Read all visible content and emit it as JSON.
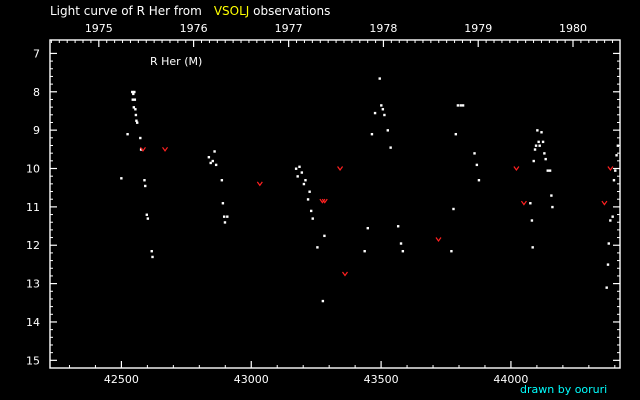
{
  "chart_data": {
    "type": "scatter",
    "title_prefix": "Light curve of R Her from",
    "title_source": "VSOLJ",
    "title_suffix": "observations",
    "series_label": "R Her (M)",
    "credit": "drawn by ooruri",
    "xlim": [
      42225,
      44420
    ],
    "ylim": [
      15.2,
      6.65
    ],
    "x_ticks": [
      42500,
      43000,
      43500,
      44000
    ],
    "y_ticks": [
      7,
      8,
      9,
      10,
      11,
      12,
      13,
      14,
      15
    ],
    "year_ticks": [
      {
        "year": "1975",
        "jd": 42413
      },
      {
        "year": "1976",
        "jd": 42778
      },
      {
        "year": "1977",
        "jd": 43144
      },
      {
        "year": "1978",
        "jd": 43509
      },
      {
        "year": "1979",
        "jd": 43874
      },
      {
        "year": "1980",
        "jd": 44239
      }
    ],
    "colors": {
      "observation": "#ffffff",
      "fainter_than": "#ff2020",
      "source": "#ffff00",
      "credit": "#00ffff"
    },
    "observations": [
      [
        42499,
        10.25
      ],
      [
        42523,
        9.1
      ],
      [
        42541,
        8.0
      ],
      [
        42543,
        8.2
      ],
      [
        42545,
        8.05
      ],
      [
        42547,
        8.4
      ],
      [
        42549,
        8.0
      ],
      [
        42551,
        8.2
      ],
      [
        42553,
        8.45
      ],
      [
        42555,
        8.6
      ],
      [
        42557,
        8.75
      ],
      [
        42560,
        8.8
      ],
      [
        42572,
        9.2
      ],
      [
        42575,
        9.5
      ],
      [
        42588,
        10.3
      ],
      [
        42591,
        10.45
      ],
      [
        42597,
        11.2
      ],
      [
        42601,
        11.3
      ],
      [
        42616,
        12.15
      ],
      [
        42619,
        12.3
      ],
      [
        42836,
        9.7
      ],
      [
        42843,
        9.85
      ],
      [
        42851,
        9.8
      ],
      [
        42858,
        9.55
      ],
      [
        42864,
        9.9
      ],
      [
        42886,
        10.3
      ],
      [
        42890,
        10.9
      ],
      [
        42895,
        11.25
      ],
      [
        42898,
        11.4
      ],
      [
        42907,
        11.25
      ],
      [
        43172,
        10.0
      ],
      [
        43178,
        10.2
      ],
      [
        43185,
        9.95
      ],
      [
        43194,
        10.1
      ],
      [
        43202,
        10.4
      ],
      [
        43208,
        10.3
      ],
      [
        43218,
        10.8
      ],
      [
        43224,
        10.6
      ],
      [
        43230,
        11.1
      ],
      [
        43236,
        11.3
      ],
      [
        43254,
        12.05
      ],
      [
        43275,
        13.45
      ],
      [
        43281,
        11.75
      ],
      [
        43436,
        12.15
      ],
      [
        43448,
        11.55
      ],
      [
        43464,
        9.1
      ],
      [
        43476,
        8.55
      ],
      [
        43494,
        7.65
      ],
      [
        43500,
        8.35
      ],
      [
        43506,
        8.45
      ],
      [
        43512,
        8.6
      ],
      [
        43525,
        9.0
      ],
      [
        43536,
        9.45
      ],
      [
        43565,
        11.5
      ],
      [
        43576,
        11.95
      ],
      [
        43583,
        12.15
      ],
      [
        43770,
        12.15
      ],
      [
        43778,
        11.05
      ],
      [
        43787,
        9.1
      ],
      [
        43795,
        8.35
      ],
      [
        43806,
        8.35
      ],
      [
        43815,
        8.35
      ],
      [
        43859,
        9.6
      ],
      [
        43868,
        9.9
      ],
      [
        43876,
        10.3
      ],
      [
        44074,
        10.9
      ],
      [
        44080,
        11.35
      ],
      [
        44083,
        12.05
      ],
      [
        44087,
        9.8
      ],
      [
        44092,
        9.5
      ],
      [
        44096,
        9.4
      ],
      [
        44101,
        9.0
      ],
      [
        44106,
        9.3
      ],
      [
        44110,
        9.4
      ],
      [
        44117,
        9.05
      ],
      [
        44123,
        9.3
      ],
      [
        44128,
        9.6
      ],
      [
        44133,
        9.75
      ],
      [
        44141,
        10.05
      ],
      [
        44150,
        10.05
      ],
      [
        44155,
        10.7
      ],
      [
        44159,
        11.0
      ],
      [
        44368,
        13.1
      ],
      [
        44373,
        12.5
      ],
      [
        44376,
        11.95
      ],
      [
        44382,
        11.35
      ],
      [
        44391,
        11.25
      ],
      [
        44396,
        10.3
      ],
      [
        44401,
        10.05
      ],
      [
        44406,
        9.65
      ],
      [
        44411,
        9.4
      ]
    ],
    "fainter_than": [
      [
        42583,
        9.5
      ],
      [
        42668,
        9.5
      ],
      [
        43033,
        10.4
      ],
      [
        43274,
        10.85
      ],
      [
        43283,
        10.85
      ],
      [
        43342,
        10.0
      ],
      [
        43361,
        12.75
      ],
      [
        43721,
        11.85
      ],
      [
        44021,
        10.0
      ],
      [
        44050,
        10.9
      ],
      [
        44360,
        10.9
      ],
      [
        44383,
        10.0
      ]
    ]
  }
}
